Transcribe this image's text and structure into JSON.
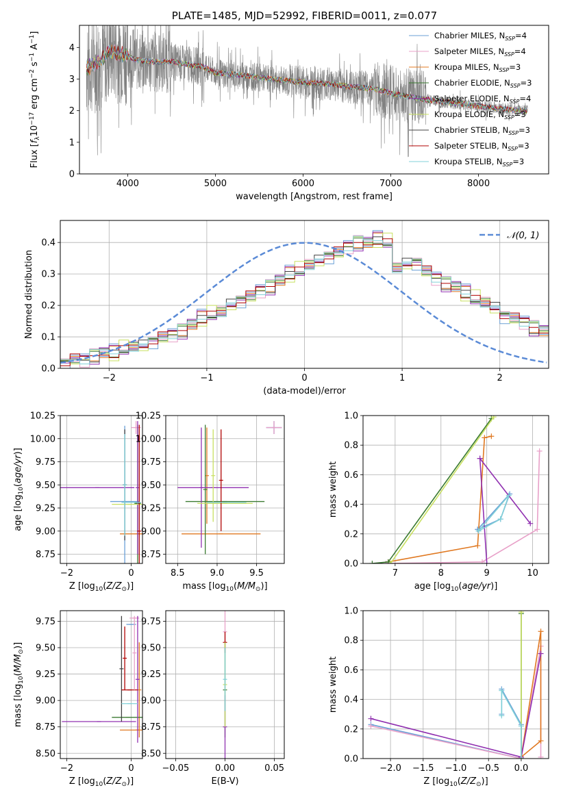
{
  "palette": [
    "#6a9fd6",
    "#e8a0c8",
    "#e07820",
    "#3a7a30",
    "#9030b0",
    "#c8e060",
    "#404040",
    "#b00000",
    "#80d0d8"
  ],
  "chart_data": [
    {
      "id": "spectrum",
      "type": "line",
      "title": "PLATE=1485, MJD=52992, FIBERID=0011, z=0.077",
      "xlabel": "wavelength [Angstrom, rest frame]",
      "ylabel_html": "Flux [<tspan font-style='italic'>f</tspan><tspan font-size='9' dy='3'>λ</tspan><tspan dy='-3'>10</tspan><tspan font-size='9' dy='-5'>−17</tspan><tspan dy='5'> erg cm</tspan><tspan font-size='9' dy='-5'>−2</tspan><tspan dy='5'> s</tspan><tspan font-size='9' dy='-5'>−1</tspan><tspan dy='5'> A</tspan><tspan font-size='9' dy='-5'>−1</tspan><tspan dy='5'>]</tspan>",
      "xlim": [
        3450,
        8800
      ],
      "ylim": [
        0,
        4.7
      ],
      "xticks": [
        4000,
        5000,
        6000,
        7000,
        8000
      ],
      "yticks": [
        0,
        1,
        2,
        3,
        4
      ],
      "continuum": [
        [
          3500,
          3.3
        ],
        [
          3700,
          3.6
        ],
        [
          3800,
          3.9
        ],
        [
          3900,
          3.8
        ],
        [
          4000,
          3.75
        ],
        [
          4100,
          3.6
        ],
        [
          4300,
          3.55
        ],
        [
          4500,
          3.55
        ],
        [
          4700,
          3.45
        ],
        [
          4860,
          3.4
        ],
        [
          5000,
          3.2
        ],
        [
          5200,
          3.15
        ],
        [
          5500,
          3.05
        ],
        [
          5800,
          2.95
        ],
        [
          6000,
          2.9
        ],
        [
          6300,
          2.85
        ],
        [
          6560,
          2.75
        ],
        [
          6800,
          2.7
        ],
        [
          7000,
          2.55
        ],
        [
          7200,
          2.45
        ],
        [
          7400,
          2.35
        ],
        [
          7700,
          2.25
        ],
        [
          8000,
          2.15
        ],
        [
          8300,
          2.05
        ],
        [
          8600,
          1.97
        ]
      ],
      "legend": [
        {
          "name": "Chabrier MILES, N<tspan font-size='8' dy='3' font-style='italic'>SSP</tspan><tspan dy='-3'>=4</tspan>"
        },
        {
          "name": "Salpeter MILES, N<tspan font-size='8' dy='3' font-style='italic'>SSP</tspan><tspan dy='-3'>=4</tspan>"
        },
        {
          "name": "Kroupa MILES, N<tspan font-size='8' dy='3' font-style='italic'>SSP</tspan><tspan dy='-3'>=3</tspan>"
        },
        {
          "name": "Chabrier ELODIE, N<tspan font-size='8' dy='3' font-style='italic'>SSP</tspan><tspan dy='-3'>=3</tspan>"
        },
        {
          "name": "Salpeter ELODIE, N<tspan font-size='8' dy='3' font-style='italic'>SSP</tspan><tspan dy='-3'>=4</tspan>"
        },
        {
          "name": "Kroupa ELODIE, N<tspan font-size='8' dy='3' font-style='italic'>SSP</tspan><tspan dy='-3'>=3</tspan>"
        },
        {
          "name": "Chabrier STELIB, N<tspan font-size='8' dy='3' font-style='italic'>SSP</tspan><tspan dy='-3'>=3</tspan>"
        },
        {
          "name": "Salpeter STELIB, N<tspan font-size='8' dy='3' font-style='italic'>SSP</tspan><tspan dy='-3'>=3</tspan>"
        },
        {
          "name": "Kroupa STELIB, N<tspan font-size='8' dy='3' font-style='italic'>SSP</tspan><tspan dy='-3'>=3</tspan>"
        }
      ]
    },
    {
      "id": "residuals",
      "type": "histogram",
      "xlabel": "(data-model)/error",
      "ylabel": "Normed distribution",
      "xlim": [
        -2.5,
        2.5
      ],
      "ylim": [
        0,
        0.47
      ],
      "xticks": [
        -2,
        -1,
        0,
        1,
        2
      ],
      "yticks": [
        0.0,
        0.1,
        0.2,
        0.3,
        0.4
      ],
      "ytick_labels": [
        "0.0",
        "0.1",
        "0.2",
        "0.3",
        "0.4"
      ],
      "bin_width": 0.1,
      "bins_start": -2.5,
      "base_values": [
        0.02,
        0.03,
        0.03,
        0.04,
        0.05,
        0.05,
        0.06,
        0.07,
        0.07,
        0.09,
        0.1,
        0.11,
        0.12,
        0.14,
        0.16,
        0.17,
        0.18,
        0.2,
        0.22,
        0.23,
        0.25,
        0.26,
        0.28,
        0.3,
        0.31,
        0.33,
        0.34,
        0.36,
        0.37,
        0.39,
        0.4,
        0.4,
        0.41,
        0.4,
        0.32,
        0.33,
        0.34,
        0.31,
        0.29,
        0.27,
        0.26,
        0.24,
        0.22,
        0.21,
        0.19,
        0.17,
        0.16,
        0.15,
        0.13,
        0.12,
        0.11,
        0.1,
        0.09,
        0.08,
        0.07,
        0.07,
        0.06,
        0.06,
        0.05,
        0.05,
        0.04
      ],
      "gaussian_label": "𝒩(0, 1)"
    },
    {
      "id": "age-vs-Z",
      "type": "errorbar",
      "xlabel": "Z [log<tspan font-size='9' dy='3'>10</tspan><tspan dy='-3'>(</tspan><tspan font-style='italic'>Z/Z</tspan><tspan font-size='9' dy='3'>⊙</tspan><tspan dy='-3'>)]</tspan>",
      "ylabel": "age  [log<tspan font-size='9' dy='3'>10</tspan><tspan dy='-3'>(</tspan><tspan font-style='italic'>age/yr</tspan><tspan>)]</tspan>",
      "xlim": [
        -2.2,
        0.35
      ],
      "ylim": [
        8.65,
        10.25
      ],
      "xticks": [
        -2,
        0
      ],
      "yticks": [
        8.75,
        9.0,
        9.25,
        9.5,
        9.75,
        10.0,
        10.25
      ],
      "ytick_labels": [
        "8.75",
        "9.00",
        "9.25",
        "9.50",
        "9.75",
        "10.00",
        "10.25"
      ],
      "points": [
        {
          "x": -0.2,
          "y": 9.32,
          "xerr": 0.45,
          "yerr": 0.82,
          "c": 0
        },
        {
          "x": 0.15,
          "y": 10.12,
          "xerr": 0.15,
          "yerr": 0.07,
          "c": 1
        },
        {
          "x": 0.2,
          "y": 8.97,
          "xerr": 0.55,
          "yerr": 0.0,
          "c": 2
        },
        {
          "x": 0.2,
          "y": 9.3,
          "xerr": 0.1,
          "yerr": 0.85,
          "c": 3
        },
        {
          "x": -1.05,
          "y": 9.47,
          "xerr": 1.15,
          "yerr": 0.0,
          "c": 4
        },
        {
          "x": 0.2,
          "y": 9.47,
          "xerr": 0.0,
          "yerr": 0.72,
          "c": 4
        },
        {
          "x": -0.05,
          "y": 9.29,
          "xerr": 0.55,
          "yerr": 0.0,
          "c": 5
        },
        {
          "x": -0.2,
          "y": 9.5,
          "xerr": 0.0,
          "yerr": 0.6,
          "c": 6
        },
        {
          "x": 0.25,
          "y": 9.0,
          "xerr": 0.0,
          "yerr": 1.15,
          "c": 7
        },
        {
          "x": 0.0,
          "y": 9.31,
          "xerr": 0.3,
          "yerr": 0.0,
          "c": 8
        },
        {
          "x": -0.2,
          "y": 9.5,
          "xerr": 0.0,
          "yerr": 0.55,
          "c": 8
        }
      ]
    },
    {
      "id": "age-vs-mass",
      "type": "errorbar",
      "xlabel": "mass [log<tspan font-size='9' dy='3'>10</tspan><tspan dy='-3'>(</tspan><tspan font-style='italic'>M/M</tspan><tspan font-size='9' dy='3'>⊙</tspan><tspan dy='-3'>)]</tspan>",
      "ylabel": "",
      "xlim": [
        8.35,
        9.85
      ],
      "ylim": [
        8.65,
        10.25
      ],
      "xticks": [
        8.5,
        9.0,
        9.5
      ],
      "yticks": [
        8.75,
        9.0,
        9.25,
        9.5,
        9.75,
        10.0,
        10.25
      ],
      "xtick_labels": [
        "8.5",
        "9.0",
        "9.5"
      ],
      "ytick_labels": [
        "8.75",
        "9.00",
        "9.25",
        "9.50",
        "9.75",
        "10.00",
        "10.25"
      ],
      "points": [
        {
          "x": 9.72,
          "y": 10.12,
          "xerr": 0.1,
          "yerr": 0.07,
          "c": 0
        },
        {
          "x": 9.72,
          "y": 10.12,
          "xerr": 0.1,
          "yerr": 0.07,
          "c": 1
        },
        {
          "x": 9.05,
          "y": 8.97,
          "xerr": 0.5,
          "yerr": 0.0,
          "c": 2
        },
        {
          "x": 8.87,
          "y": 9.6,
          "xerr": 0.0,
          "yerr": 0.52,
          "c": 2
        },
        {
          "x": 9.1,
          "y": 9.32,
          "xerr": 0.5,
          "yerr": 0.0,
          "c": 3
        },
        {
          "x": 8.85,
          "y": 9.45,
          "xerr": 0.0,
          "yerr": 0.7,
          "c": 3
        },
        {
          "x": 8.95,
          "y": 9.47,
          "xerr": 0.45,
          "yerr": 0.0,
          "c": 4
        },
        {
          "x": 8.8,
          "y": 9.47,
          "xerr": 0.0,
          "yerr": 0.65,
          "c": 4
        },
        {
          "x": 9.1,
          "y": 9.3,
          "xerr": 0.35,
          "yerr": 0.0,
          "c": 5
        },
        {
          "x": 8.95,
          "y": 9.6,
          "xerr": 0.0,
          "yerr": 0.5,
          "c": 5
        },
        {
          "x": 9.05,
          "y": 9.55,
          "xerr": 0.0,
          "yerr": 0.55,
          "c": 7
        },
        {
          "x": 9.12,
          "y": 9.31,
          "xerr": 0.25,
          "yerr": 0.0,
          "c": 8
        }
      ]
    },
    {
      "id": "mass-weight-vs-age",
      "type": "line",
      "xlabel": "age  [log<tspan font-size='9' dy='3'>10</tspan><tspan dy='-3'>(</tspan><tspan font-style='italic'>age/yr</tspan><tspan>)]</tspan>",
      "ylabel": "mass weight",
      "xlim": [
        6.3,
        10.35
      ],
      "ylim": [
        0,
        1.0
      ],
      "xticks": [
        7,
        8,
        9,
        10
      ],
      "yticks": [
        0.0,
        0.2,
        0.4,
        0.6,
        0.8,
        1.0
      ],
      "ytick_labels": [
        "0.0",
        "0.2",
        "0.4",
        "0.6",
        "0.8",
        "1.0"
      ],
      "series": [
        {
          "c": 0,
          "x": [
            8.8,
            9.3,
            9.5,
            8.8
          ],
          "y": [
            0.23,
            0.3,
            0.47,
            0.23
          ]
        },
        {
          "c": 1,
          "x": [
            6.8,
            8.9,
            10.1,
            10.15
          ],
          "y": [
            0.0,
            0.01,
            0.23,
            0.76
          ]
        },
        {
          "c": 2,
          "x": [
            6.85,
            8.8,
            8.95,
            9.1
          ],
          "y": [
            0.01,
            0.12,
            0.85,
            0.86
          ]
        },
        {
          "c": 3,
          "x": [
            6.5,
            6.85,
            9.1
          ],
          "y": [
            0.0,
            0.01,
            0.98
          ]
        },
        {
          "c": 4,
          "x": [
            8.85,
            9.95
          ],
          "y": [
            0.71,
            0.27
          ]
        },
        {
          "c": 4,
          "x": [
            8.85,
            9.0
          ],
          "y": [
            0.71,
            0.0
          ]
        },
        {
          "c": 5,
          "x": [
            6.9,
            9.15
          ],
          "y": [
            0.0,
            0.99
          ]
        },
        {
          "c": 8,
          "x": [
            8.82,
            9.3,
            9.48,
            8.82
          ],
          "y": [
            0.22,
            0.3,
            0.46,
            0.22
          ]
        }
      ]
    },
    {
      "id": "mass-vs-Z",
      "type": "errorbar",
      "xlabel": "Z [log<tspan font-size='9' dy='3'>10</tspan><tspan dy='-3'>(</tspan><tspan font-style='italic'>Z/Z</tspan><tspan font-size='9' dy='3'>⊙</tspan><tspan dy='-3'>)]</tspan>",
      "ylabel": "mass [log<tspan font-size='9' dy='3'>10</tspan><tspan dy='-3'>(</tspan><tspan font-style='italic'>M/M</tspan><tspan font-size='9' dy='3'>⊙</tspan><tspan dy='-3'>)]</tspan>",
      "xlim": [
        -2.2,
        0.35
      ],
      "ylim": [
        8.45,
        9.85
      ],
      "xticks": [
        -2,
        0
      ],
      "yticks": [
        8.5,
        8.75,
        9.0,
        9.25,
        9.5,
        9.75
      ],
      "ytick_labels": [
        "8.50",
        "8.75",
        "9.00",
        "9.25",
        "9.50",
        "9.75"
      ],
      "points": [
        {
          "x": 0.0,
          "y": 9.72,
          "xerr": 0.15,
          "yerr": 0.0,
          "c": 0
        },
        {
          "x": 0.1,
          "y": 9.78,
          "xerr": 0.15,
          "yerr": 0.0,
          "c": 1
        },
        {
          "x": 0.2,
          "y": 8.72,
          "xerr": 0.55,
          "yerr": 0.0,
          "c": 2
        },
        {
          "x": 0.25,
          "y": 9.1,
          "xerr": 0.0,
          "yerr": 0.45,
          "c": 2
        },
        {
          "x": -0.1,
          "y": 8.84,
          "xerr": 0.5,
          "yerr": 0.0,
          "c": 3
        },
        {
          "x": -1.0,
          "y": 8.8,
          "xerr": 1.15,
          "yerr": 0.0,
          "c": 4
        },
        {
          "x": 0.2,
          "y": 9.2,
          "xerr": 0.0,
          "yerr": 0.6,
          "c": 4
        },
        {
          "x": -0.3,
          "y": 9.3,
          "xerr": 0.0,
          "yerr": 0.5,
          "c": 6
        },
        {
          "x": -0.05,
          "y": 9.1,
          "xerr": 0.25,
          "yerr": 0.0,
          "c": 7
        },
        {
          "x": -0.2,
          "y": 9.4,
          "xerr": 0.0,
          "yerr": 0.3,
          "c": 7
        },
        {
          "x": -0.05,
          "y": 8.97,
          "xerr": 0.25,
          "yerr": 0.0,
          "c": 8
        },
        {
          "x": 0.1,
          "y": 9.45,
          "xerr": 0.0,
          "yerr": 0.35,
          "c": 1
        }
      ]
    },
    {
      "id": "mass-vs-EBV",
      "type": "errorbar",
      "xlabel": "E(B-V)",
      "ylabel": "",
      "xlim": [
        -0.06,
        0.06
      ],
      "ylim": [
        8.45,
        9.85
      ],
      "xticks": [
        -0.05,
        0.0,
        0.05
      ],
      "xtick_labels": [
        "−0.05",
        "0.00",
        "0.05"
      ],
      "yticks": [
        8.5,
        8.75,
        9.0,
        9.25,
        9.5,
        9.75
      ],
      "ytick_labels": [
        "8.50",
        "8.75",
        "9.00",
        "9.25",
        "9.50",
        "9.75"
      ],
      "points": [
        {
          "x": 0.0,
          "y": 9.65,
          "xerr": 0.0,
          "yerr": 0.2,
          "c": 1
        },
        {
          "x": 0.0,
          "y": 9.55,
          "xerr": 0.0,
          "yerr": 0.1,
          "c": 7
        },
        {
          "x": 0.0,
          "y": 9.1,
          "xerr": 0.0,
          "yerr": 0.45,
          "c": 3
        },
        {
          "x": 0.0,
          "y": 8.75,
          "xerr": 0.0,
          "yerr": 0.3,
          "c": 4
        },
        {
          "x": 0.0,
          "y": 9.15,
          "xerr": 0.0,
          "yerr": 0.4,
          "c": 5
        },
        {
          "x": 0.0,
          "y": 9.2,
          "xerr": 0.0,
          "yerr": 0.3,
          "c": 8
        }
      ]
    },
    {
      "id": "mass-weight-vs-Z",
      "type": "line",
      "xlabel": "Z [log<tspan font-size='9' dy='3'>10</tspan><tspan dy='-3'>(</tspan><tspan font-style='italic'>Z/Z</tspan><tspan font-size='9' dy='3'>⊙</tspan><tspan dy='-3'>)]</tspan>",
      "ylabel": "mass weight",
      "xlim": [
        -2.42,
        0.42
      ],
      "ylim": [
        0,
        1.0
      ],
      "xticks": [
        -2.0,
        -1.5,
        -1.0,
        -0.5,
        0.0
      ],
      "xtick_labels": [
        "−2.0",
        "−1.5",
        "−1.0",
        "−0.5",
        "0.0"
      ],
      "yticks": [
        0.0,
        0.2,
        0.4,
        0.6,
        0.8,
        1.0
      ],
      "ytick_labels": [
        "0.0",
        "0.2",
        "0.4",
        "0.6",
        "0.8",
        "1.0"
      ],
      "series": [
        {
          "c": 0,
          "x": [
            -2.3,
            0.0
          ],
          "y": [
            0.23,
            0.0
          ]
        },
        {
          "c": 0,
          "x": [
            -0.3,
            -0.3,
            0.0,
            0.0
          ],
          "y": [
            0.3,
            0.47,
            0.23,
            0.0
          ]
        },
        {
          "c": 1,
          "x": [
            -2.3,
            0.0,
            0.3,
            0.3
          ],
          "y": [
            0.22,
            0.0,
            0.76,
            0.01
          ]
        },
        {
          "c": 2,
          "x": [
            0.0,
            0.3,
            0.3,
            0.0
          ],
          "y": [
            0.01,
            0.86,
            0.12,
            0.01
          ]
        },
        {
          "c": 3,
          "x": [
            0.0,
            0.0
          ],
          "y": [
            0.0,
            0.98
          ]
        },
        {
          "c": 4,
          "x": [
            -2.3,
            0.0,
            0.3
          ],
          "y": [
            0.27,
            0.01,
            0.71
          ]
        },
        {
          "c": 5,
          "x": [
            0.0,
            0.0
          ],
          "y": [
            0.0,
            0.99
          ]
        },
        {
          "c": 8,
          "x": [
            -0.3,
            -0.3,
            0.0,
            0.0
          ],
          "y": [
            0.29,
            0.46,
            0.22,
            0.0
          ]
        }
      ]
    }
  ]
}
